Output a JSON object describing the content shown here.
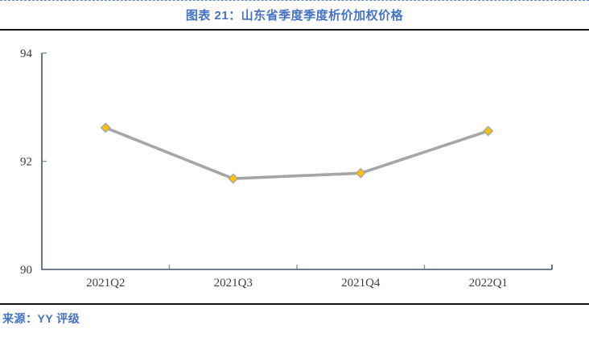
{
  "page": {
    "title": "图表 21：山东省季度季度析价加权价格",
    "source": "来源：YY 评级"
  },
  "colors": {
    "title_blue": "#4472C4",
    "axis_navy": "#44546A",
    "tick_gray_blue": "#8496B0",
    "series_gray": "#A6A6A6",
    "marker_gold": "#FFC000",
    "divider_black": "#141414",
    "tick_label_gray": "#3F3F3F"
  },
  "chart_data": {
    "type": "line",
    "title": "图表 21：山东省季度季度析价加权价格",
    "categories": [
      "2021Q2",
      "2021Q3",
      "2021Q4",
      "2022Q1"
    ],
    "values": [
      92.62,
      91.68,
      91.78,
      92.56
    ],
    "xlabel": "",
    "ylabel": "",
    "ylim": [
      90,
      94
    ],
    "yticks": [
      94,
      92,
      90
    ],
    "grid": false,
    "legend": false,
    "marker_shape": "diamond",
    "source": "来源：YY 评级"
  }
}
